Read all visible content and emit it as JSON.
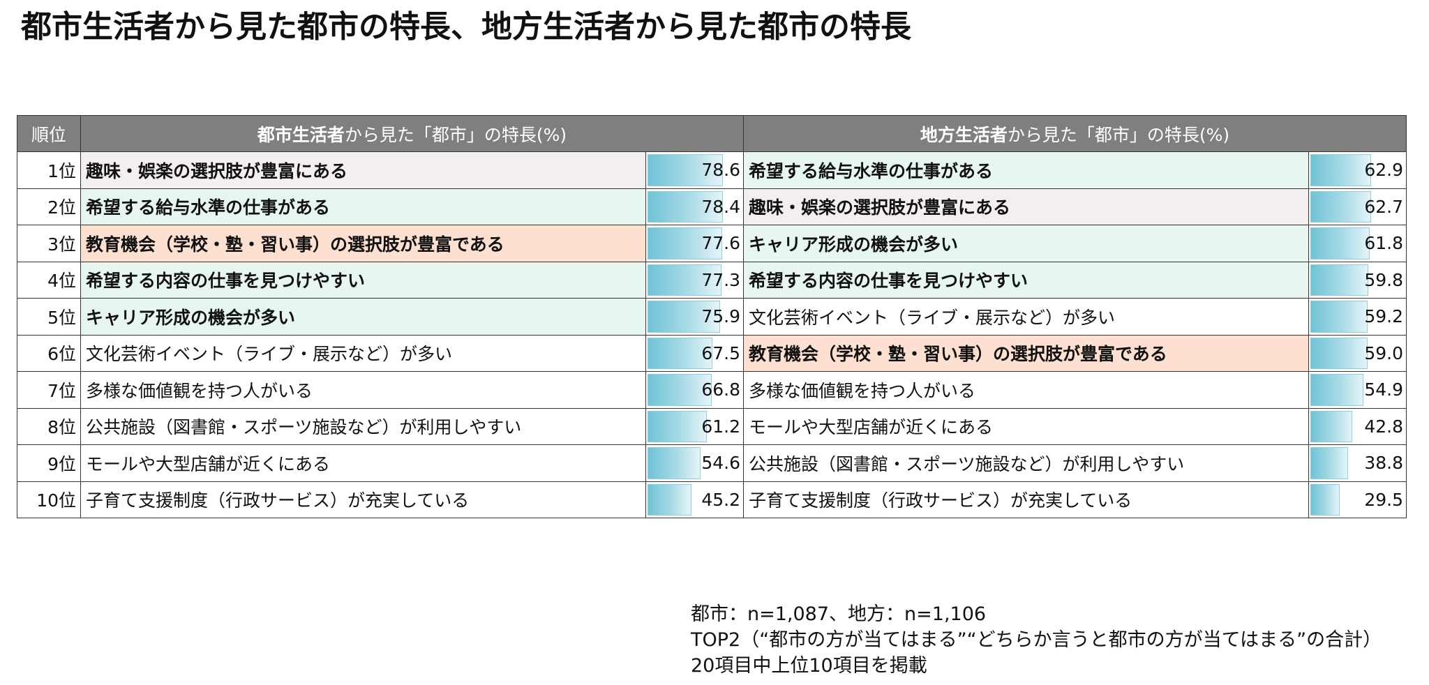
{
  "title": "都市生活者から見た都市の特長、地方生活者から見た都市の特長",
  "table": {
    "rank_header": "順位",
    "left_header_bold": "都市生活者",
    "left_header_rest": "から見た「都市」の特長(%)",
    "right_header_bold": "地方生活者",
    "right_header_rest": "から見た「都市」の特長(%)"
  },
  "chart_data": {
    "type": "table",
    "ranks": [
      "1位",
      "2位",
      "3位",
      "4位",
      "5位",
      "6位",
      "7位",
      "8位",
      "9位",
      "10位"
    ],
    "max_value": 100,
    "series": [
      {
        "name": "都市生活者から見た「都市」の特長(%)",
        "items": [
          {
            "label": "趣味・娯楽の選択肢が豊富にある",
            "value": 78.6,
            "bold": true,
            "color": "#f3eef2"
          },
          {
            "label": "希望する給与水準の仕事がある",
            "value": 78.4,
            "bold": true,
            "color": "#e8f6f0"
          },
          {
            "label": "教育機会（学校・塾・習い事）の選択肢が豊富である",
            "value": 77.6,
            "bold": true,
            "color": "#fde0d0"
          },
          {
            "label": "希望する内容の仕事を見つけやすい",
            "value": 77.3,
            "bold": true,
            "color": "#e8f6f0"
          },
          {
            "label": "キャリア形成の機会が多い",
            "value": 75.9,
            "bold": true,
            "color": "#e8f6f0"
          },
          {
            "label": "文化芸術イベント（ライブ・展示など）が多い",
            "value": 67.5,
            "bold": false,
            "color": "#ffffff"
          },
          {
            "label": "多様な価値観を持つ人がいる",
            "value": 66.8,
            "bold": false,
            "color": "#ffffff"
          },
          {
            "label": "公共施設（図書館・スポーツ施設など）が利用しやすい",
            "value": 61.2,
            "bold": false,
            "color": "#ffffff"
          },
          {
            "label": "モールや大型店舗が近くにある",
            "value": 54.6,
            "bold": false,
            "color": "#ffffff"
          },
          {
            "label": "子育て支援制度（行政サービス）が充実している",
            "value": 45.2,
            "bold": false,
            "color": "#ffffff"
          }
        ]
      },
      {
        "name": "地方生活者から見た「都市」の特長(%)",
        "items": [
          {
            "label": "希望する給与水準の仕事がある",
            "value": 62.9,
            "bold": true,
            "color": "#e8f6f0"
          },
          {
            "label": "趣味・娯楽の選択肢が豊富にある",
            "value": 62.7,
            "bold": true,
            "color": "#f3eef2"
          },
          {
            "label": "キャリア形成の機会が多い",
            "value": 61.8,
            "bold": true,
            "color": "#e8f6f0"
          },
          {
            "label": "希望する内容の仕事を見つけやすい",
            "value": 59.8,
            "bold": true,
            "color": "#e8f6f0"
          },
          {
            "label": "文化芸術イベント（ライブ・展示など）が多い",
            "value": 59.2,
            "bold": false,
            "color": "#ffffff"
          },
          {
            "label": "教育機会（学校・塾・習い事）の選択肢が豊富である",
            "value": 59.0,
            "bold": true,
            "color": "#fde0d0"
          },
          {
            "label": "多様な価値観を持つ人がいる",
            "value": 54.9,
            "bold": false,
            "color": "#ffffff"
          },
          {
            "label": "モールや大型店舗が近くにある",
            "value": 42.8,
            "bold": false,
            "color": "#ffffff"
          },
          {
            "label": "公共施設（図書館・スポーツ施設など）が利用しやすい",
            "value": 38.8,
            "bold": false,
            "color": "#ffffff"
          },
          {
            "label": "子育て支援制度（行政サービス）が充実している",
            "value": 29.5,
            "bold": false,
            "color": "#ffffff"
          }
        ]
      }
    ]
  },
  "notes": [
    "都市：n=1,087、地方：n=1,106",
    "TOP2（“都市の方が当てはまる”“どちらか言うと都市の方が当てはまる”の合計）",
    "20項目中上位10項目を掲載"
  ]
}
